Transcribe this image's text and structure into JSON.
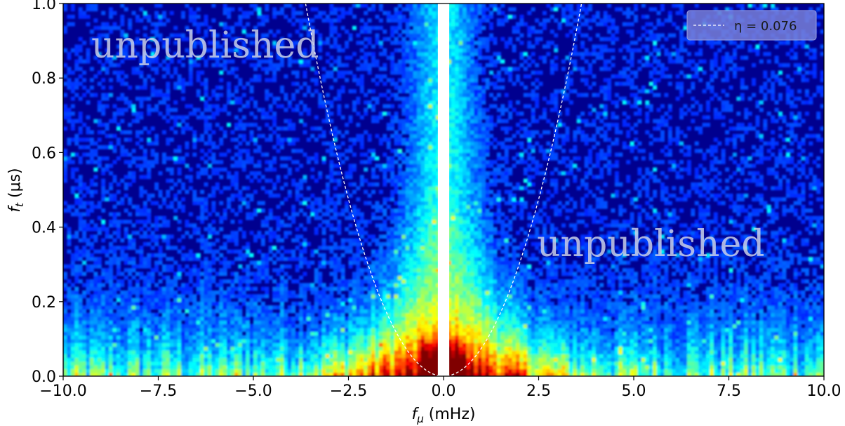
{
  "chart_data": {
    "type": "heatmap",
    "title": "",
    "xlabel": "f_μ (mHz)",
    "ylabel": "f_t (μs)",
    "xlim": [
      -10.0,
      10.0
    ],
    "ylim": [
      0.0,
      1.0
    ],
    "xticks": [
      "−10.0",
      "−7.5",
      "−5.0",
      "−2.5",
      "0.0",
      "2.5",
      "5.0",
      "7.5",
      "10.0"
    ],
    "xtick_values": [
      -10.0,
      -7.5,
      -5.0,
      -2.5,
      0.0,
      2.5,
      5.0,
      7.5,
      10.0
    ],
    "yticks": [
      "0.0",
      "0.2",
      "0.4",
      "0.6",
      "0.8",
      "1.0"
    ],
    "ytick_values": [
      0.0,
      0.2,
      0.4,
      0.6,
      0.8,
      1.0
    ],
    "colormap": "jet",
    "overlay_curve": {
      "label": "η = 0.076",
      "eta": 0.076,
      "style": "dashed",
      "color": "#ffffff"
    },
    "masked_band_x": [
      -0.15,
      0.15
    ],
    "legend_placement": "top-right",
    "grid": false
  },
  "watermarks": [
    "unpublished",
    "unpublished"
  ]
}
